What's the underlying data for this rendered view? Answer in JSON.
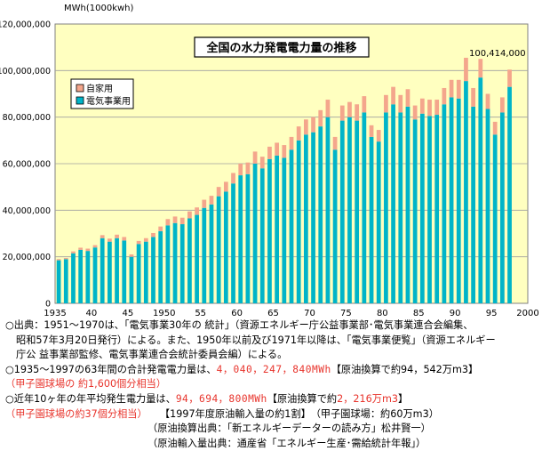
{
  "chart_data": {
    "type": "bar",
    "stacked": true,
    "title": "全国の水力発電電力量の推移",
    "ylabel": "MWh(1000kwh)",
    "ylim": [
      0,
      120000000
    ],
    "yticks": [
      "0",
      "20,000,000",
      "40,000,000",
      "60,000,000",
      "80,000,000",
      "100,000,000",
      "120,000,000"
    ],
    "xlim": [
      1935,
      2000
    ],
    "xticks": [
      "1935",
      "40",
      "45",
      "1950",
      "55",
      "60",
      "65",
      "70",
      "75",
      "80",
      "85",
      "90",
      "95",
      "2000"
    ],
    "x": [
      1935,
      1936,
      1937,
      1938,
      1939,
      1940,
      1941,
      1942,
      1943,
      1944,
      1945,
      1946,
      1947,
      1948,
      1949,
      1950,
      1951,
      1952,
      1953,
      1954,
      1955,
      1956,
      1957,
      1958,
      1959,
      1960,
      1961,
      1962,
      1963,
      1964,
      1965,
      1966,
      1967,
      1968,
      1969,
      1970,
      1971,
      1972,
      1973,
      1974,
      1975,
      1976,
      1977,
      1978,
      1979,
      1980,
      1981,
      1982,
      1983,
      1984,
      1985,
      1986,
      1987,
      1988,
      1989,
      1990,
      1991,
      1992,
      1993,
      1994,
      1995,
      1996,
      1997
    ],
    "series": [
      {
        "name": "電気事業用",
        "color": "#00b4c8",
        "values": [
          18500000,
          19000000,
          21500000,
          23000000,
          22500000,
          24000000,
          28000000,
          26500000,
          28000000,
          27000000,
          20000000,
          25500000,
          26500000,
          28500000,
          31000000,
          33500000,
          34500000,
          34000000,
          36500000,
          38000000,
          41000000,
          42500000,
          46000000,
          48000000,
          51500000,
          55000000,
          55500000,
          60000000,
          58000000,
          62000000,
          63500000,
          62500000,
          66000000,
          70000000,
          72500000,
          73500000,
          76000000,
          80000000,
          66000000,
          78500000,
          80000000,
          78500000,
          82000000,
          71500000,
          69500000,
          82000000,
          85500000,
          82000000,
          84500000,
          79000000,
          81500000,
          80500000,
          81000000,
          85500000,
          88500000,
          88000000,
          95500000,
          84500000,
          97000000,
          83500000,
          72500000,
          82000000,
          93000000
        ]
      },
      {
        "name": "自家用",
        "color": "#f4a68c",
        "values": [
          500000,
          500000,
          800000,
          900000,
          1000000,
          1000000,
          1300000,
          1300000,
          1500000,
          1500000,
          1000000,
          1300000,
          1500000,
          1700000,
          2000000,
          2700000,
          2800000,
          2800000,
          3000000,
          3200000,
          3500000,
          3700000,
          4000000,
          4200000,
          4500000,
          5000000,
          5000000,
          5200000,
          5000000,
          5300000,
          5500000,
          5500000,
          5500000,
          6000000,
          6500000,
          6500000,
          7000000,
          7500000,
          5500000,
          6500000,
          6500000,
          7000000,
          7000000,
          5000000,
          5000000,
          7500000,
          7500000,
          7500000,
          7500000,
          6000000,
          6500000,
          7000000,
          6500000,
          7000000,
          7500000,
          8000000,
          10000000,
          8000000,
          8000000,
          6500000,
          5500000,
          6500000,
          7414000
        ]
      }
    ],
    "annotation": "100,414,000",
    "legend": "top-left",
    "grid": true,
    "bar_color_background": "#ffffc0"
  },
  "notes": {
    "l1": "○出典：1951～1970は、「電気事業30年の 統計」（資源エネルギー庁公益事業部･電気事業連合会編集、",
    "l2": "昭和57年3月20日発行）による。また、1950年以前及び1971年以降は、「電気事業便覧」（資源エネルギー",
    "l3": "庁公 益事業部監修、電気事業連合会統計委員会編）による。",
    "l4a": "○1935～1997の63年間の合計発電電力量は、",
    "l4b": "4，040，247，840MWh",
    "l4c": "【原油換算で約94，542万m3】",
    "l5": "（甲子園球場の 約1,600個分相当）",
    "l6a": "○近年10ヶ年の年平均発生電力量は、",
    "l6b": "94，694，800MWh",
    "l6c": "【原油換算で約",
    "l6d": "2，216万m3",
    "l6e": "】",
    "l7a": "（甲子園球場の約37個分相当）",
    "l7b": "【1997年度原油輸入量の約1割】　（甲子園球場：約60万m3）",
    "l8": "（原油換算出典：「新エネルギーデーターの読み方」松井賢一）",
    "l9": "（原油輸入量出典：通産省「エネルギー生産･需給統計年報」）"
  }
}
